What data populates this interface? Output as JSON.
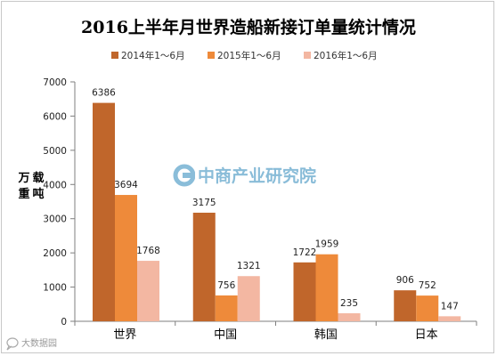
{
  "chart_data": {
    "type": "bar",
    "title": "2016上半年月世界造船新接订单量统计情况",
    "ylabel": "万载重吨",
    "xlabel": "",
    "categories": [
      "世界",
      "中国",
      "韩国",
      "日本"
    ],
    "series": [
      {
        "name": "2014年1～6月",
        "values": [
          6386,
          3175,
          1722,
          906
        ],
        "color": "#c0662b"
      },
      {
        "name": "2015年1～6月",
        "values": [
          3694,
          756,
          1959,
          752
        ],
        "color": "#ee8a3a"
      },
      {
        "name": "2016年1～6月",
        "values": [
          1768,
          1321,
          235,
          147
        ],
        "color": "#f3b7a2"
      }
    ],
    "ylim": [
      0,
      7000
    ],
    "yticks": [
      0,
      1000,
      2000,
      3000,
      4000,
      5000,
      6000,
      7000
    ],
    "grid": false,
    "legend_position": "top"
  },
  "watermark": {
    "text": "中商产业研究院",
    "icon": "cz-logo-icon",
    "color": "#2a86b9"
  },
  "source_mark": {
    "text": "大数据园",
    "icon": "chat-bubble-icon"
  }
}
